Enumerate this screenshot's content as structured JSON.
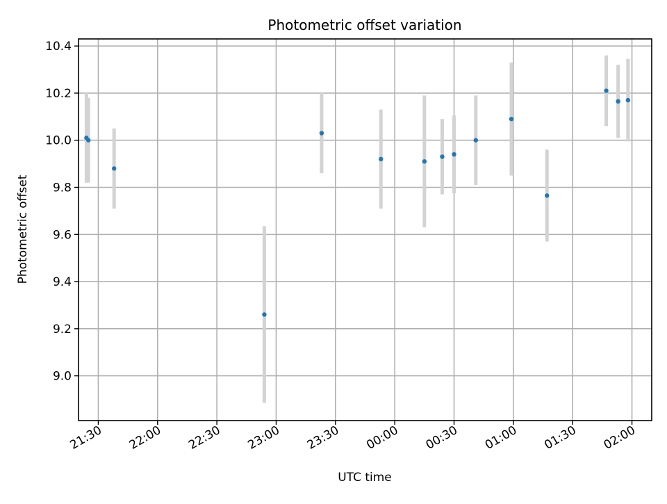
{
  "chart_data": {
    "type": "scatter",
    "title": "Photometric offset variation",
    "xlabel": "UTC time",
    "ylabel": "Photometric offset",
    "x_axis_type": "time",
    "x_start_date": "2000-01-01",
    "xlim": [
      "2000-01-01 21:20",
      "2000-01-02 02:10"
    ],
    "ylim": [
      8.81,
      10.43
    ],
    "x_ticks": [
      {
        "time": "2000-01-01 21:30",
        "label": "21:30"
      },
      {
        "time": "2000-01-01 22:00",
        "label": "22:00"
      },
      {
        "time": "2000-01-01 22:30",
        "label": "22:30"
      },
      {
        "time": "2000-01-01 23:00",
        "label": "23:00"
      },
      {
        "time": "2000-01-01 23:30",
        "label": "23:30"
      },
      {
        "time": "2000-01-02 00:00",
        "label": "00:00"
      },
      {
        "time": "2000-01-02 00:30",
        "label": "00:30"
      },
      {
        "time": "2000-01-02 01:00",
        "label": "01:00"
      },
      {
        "time": "2000-01-02 01:30",
        "label": "01:30"
      },
      {
        "time": "2000-01-02 02:00",
        "label": "02:00"
      }
    ],
    "y_ticks": [
      {
        "value": 9.0,
        "label": "9.0"
      },
      {
        "value": 9.2,
        "label": "9.2"
      },
      {
        "value": 9.4,
        "label": "9.4"
      },
      {
        "value": 9.6,
        "label": "9.6"
      },
      {
        "value": 9.8,
        "label": "9.8"
      },
      {
        "value": 10.0,
        "label": "10.0"
      },
      {
        "value": 10.2,
        "label": "10.2"
      },
      {
        "value": 10.4,
        "label": "10.4"
      }
    ],
    "grid": true,
    "marker_color": "#1f77b4",
    "errorbar_color": "#d3d3d3",
    "points": [
      {
        "time": "2000-01-01 21:24",
        "y": 10.01,
        "yerr": 0.19
      },
      {
        "time": "2000-01-01 21:25",
        "y": 10.0,
        "yerr": 0.18
      },
      {
        "time": "2000-01-01 21:38",
        "y": 9.88,
        "yerr": 0.17
      },
      {
        "time": "2000-01-01 22:54",
        "y": 9.26,
        "yerr": 0.375
      },
      {
        "time": "2000-01-01 23:23",
        "y": 10.03,
        "yerr": 0.17
      },
      {
        "time": "2000-01-01 23:53",
        "y": 9.92,
        "yerr": 0.21
      },
      {
        "time": "2000-01-02 00:15",
        "y": 9.91,
        "yerr": 0.28
      },
      {
        "time": "2000-01-02 00:24",
        "y": 9.93,
        "yerr": 0.16
      },
      {
        "time": "2000-01-02 00:30",
        "y": 9.94,
        "yerr": 0.165
      },
      {
        "time": "2000-01-02 00:41",
        "y": 10.0,
        "yerr": 0.19
      },
      {
        "time": "2000-01-02 00:59",
        "y": 10.09,
        "yerr": 0.24
      },
      {
        "time": "2000-01-02 01:17",
        "y": 9.765,
        "yerr": 0.195
      },
      {
        "time": "2000-01-02 01:47",
        "y": 10.21,
        "yerr": 0.15
      },
      {
        "time": "2000-01-02 01:53",
        "y": 10.165,
        "yerr": 0.155
      },
      {
        "time": "2000-01-02 01:58",
        "y": 10.17,
        "yerr": 0.175
      }
    ]
  }
}
